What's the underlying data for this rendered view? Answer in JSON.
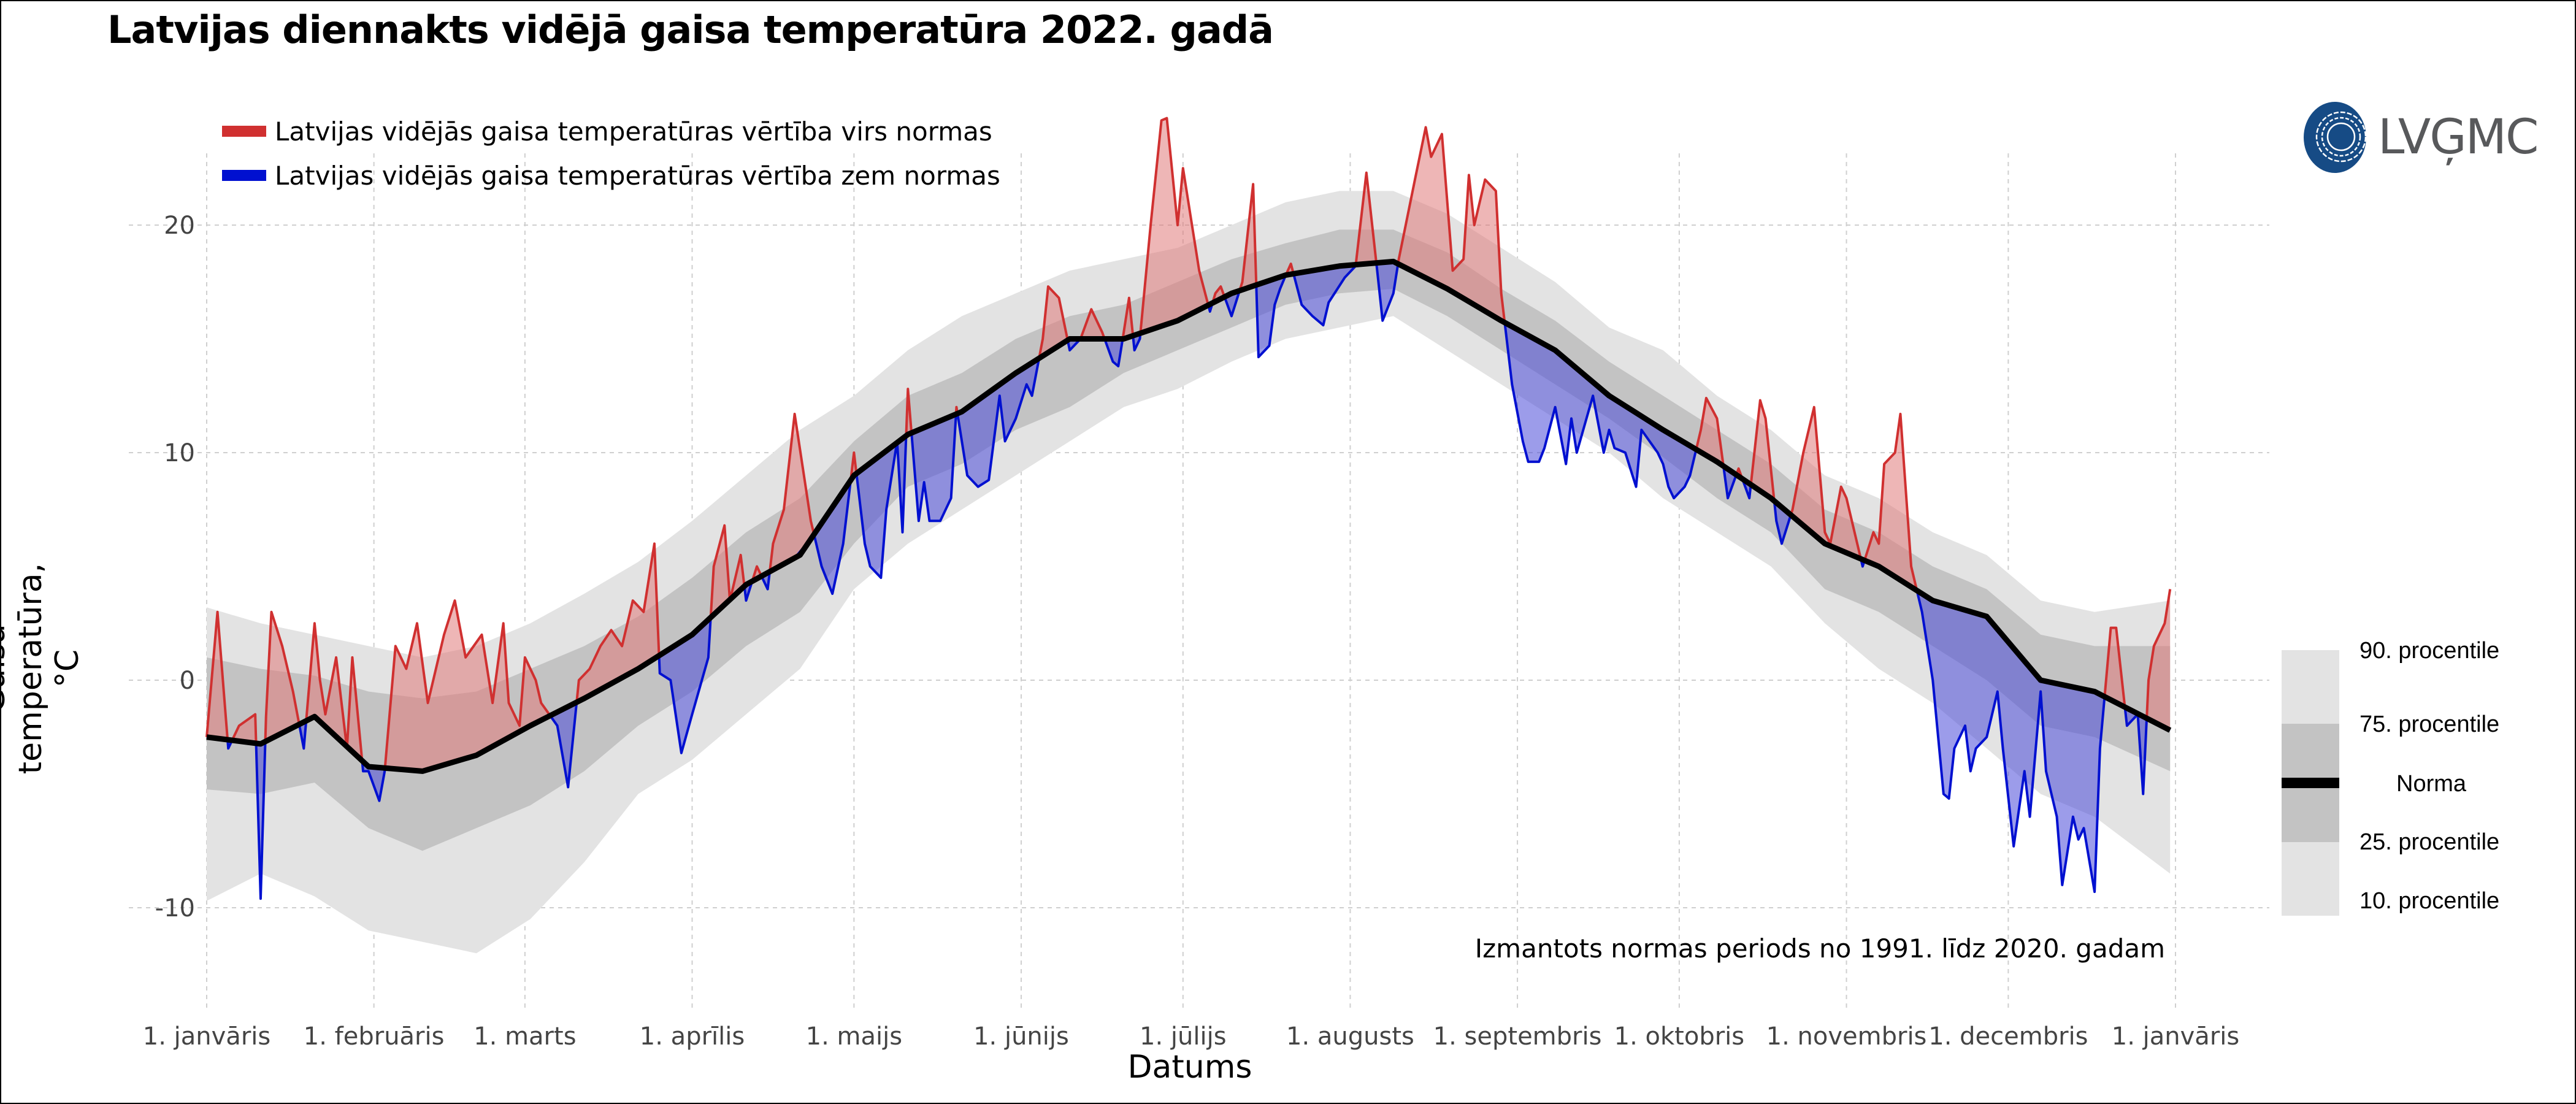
{
  "title": "Latvijas diennakts vidējā gaisa temperatūra 2022. gadā",
  "legend": {
    "above": {
      "label": "Latvijas vidējās gaisa temperatūras vērtība virs normas",
      "color": "#d03030"
    },
    "below": {
      "label": "Latvijas vidējās gaisa temperatūras vērtība zem normas",
      "color": "#0010d0"
    }
  },
  "logo": {
    "text": "LVĢMC",
    "color": "#164b85"
  },
  "percentile_legend": {
    "p90": "90. procentile",
    "p75": "75. procentile",
    "norma": "Norma",
    "p25": "25. procentile",
    "p10": "10. procentile"
  },
  "note": "Izmantots normas periods no 1991. līdz 2020. gadam",
  "chart_data": {
    "type": "area",
    "title": "Latvijas diennakts vidējā gaisa temperatūra 2022. gadā",
    "xlabel": "Datums",
    "ylabel": "Gaisa temperatūra, °C",
    "ylim": [
      -15,
      25
    ],
    "yticks": [
      -10,
      0,
      10,
      20
    ],
    "xticks": [
      {
        "day": 0,
        "label": "1. janvāris"
      },
      {
        "day": 31,
        "label": "1. februāris"
      },
      {
        "day": 59,
        "label": "1. marts"
      },
      {
        "day": 90,
        "label": "1. aprīlis"
      },
      {
        "day": 120,
        "label": "1. maijs"
      },
      {
        "day": 151,
        "label": "1. jūnijs"
      },
      {
        "day": 181,
        "label": "1. jūlijs"
      },
      {
        "day": 212,
        "label": "1. augusts"
      },
      {
        "day": 243,
        "label": "1. septembris"
      },
      {
        "day": 273,
        "label": "1. oktobris"
      },
      {
        "day": 304,
        "label": "1. novembris"
      },
      {
        "day": 334,
        "label": "1. decembris"
      },
      {
        "day": 365,
        "label": "1. janvāris"
      }
    ],
    "grid": true,
    "climate_days": [
      0,
      10,
      20,
      30,
      40,
      50,
      60,
      70,
      80,
      90,
      100,
      110,
      120,
      130,
      140,
      150,
      160,
      170,
      180,
      190,
      200,
      210,
      220,
      230,
      240,
      250,
      260,
      270,
      280,
      290,
      300,
      310,
      320,
      330,
      340,
      350,
      364
    ],
    "p10": [
      -9.7,
      -8.5,
      -9.5,
      -11.0,
      -11.5,
      -12.0,
      -10.5,
      -8.0,
      -5.0,
      -3.5,
      -1.5,
      0.5,
      4.0,
      6.0,
      7.5,
      9.0,
      10.5,
      12.0,
      12.8,
      14.0,
      15.0,
      15.5,
      16.0,
      14.5,
      13.0,
      11.5,
      10.0,
      8.0,
      6.5,
      5.0,
      2.5,
      0.5,
      -1.0,
      -3.0,
      -5.0,
      -6.0,
      -8.5
    ],
    "p25": [
      -4.8,
      -5.0,
      -4.5,
      -6.5,
      -7.5,
      -6.5,
      -5.5,
      -4.0,
      -2.0,
      -0.5,
      1.5,
      3.0,
      6.0,
      8.5,
      9.5,
      11.0,
      12.0,
      13.5,
      14.5,
      15.5,
      16.5,
      17.0,
      17.2,
      16.0,
      14.5,
      13.0,
      11.5,
      9.8,
      8.0,
      6.5,
      4.0,
      3.0,
      1.5,
      0.0,
      -2.0,
      -2.5,
      -4.0
    ],
    "norma": [
      -2.5,
      -2.8,
      -1.6,
      -3.8,
      -4.0,
      -3.3,
      -2.0,
      -0.8,
      0.5,
      2.0,
      4.2,
      5.5,
      9.0,
      10.8,
      11.8,
      13.5,
      15.0,
      15.0,
      15.8,
      17.0,
      17.8,
      18.2,
      18.4,
      17.2,
      15.8,
      14.5,
      12.5,
      11.0,
      9.6,
      8.0,
      6.0,
      5.0,
      3.5,
      2.8,
      0.0,
      -0.5,
      -2.2
    ],
    "p75": [
      1.0,
      0.5,
      0.2,
      -0.5,
      -0.8,
      -0.5,
      0.5,
      1.5,
      2.8,
      4.5,
      6.5,
      8.0,
      10.5,
      12.5,
      13.5,
      15.0,
      16.0,
      16.5,
      17.5,
      18.5,
      19.2,
      19.8,
      19.8,
      18.8,
      17.2,
      15.8,
      14.0,
      12.5,
      11.0,
      9.5,
      7.5,
      6.5,
      5.0,
      4.0,
      2.0,
      1.5,
      1.5
    ],
    "p90": [
      3.2,
      2.5,
      2.0,
      1.5,
      1.0,
      1.5,
      2.5,
      3.8,
      5.2,
      7.0,
      9.0,
      11.0,
      12.5,
      14.5,
      16.0,
      17.0,
      18.0,
      18.5,
      19.0,
      20.0,
      21.0,
      21.5,
      21.5,
      20.5,
      19.0,
      17.5,
      15.5,
      14.5,
      12.5,
      11.0,
      9.0,
      8.0,
      6.5,
      5.5,
      3.5,
      3.0,
      3.5
    ],
    "actual_2022": [
      [
        0,
        -2.5
      ],
      [
        2,
        3
      ],
      [
        4,
        -3
      ],
      [
        6,
        -2
      ],
      [
        9,
        -1.5
      ],
      [
        10,
        -9.6
      ],
      [
        11,
        -1.6
      ],
      [
        12,
        3
      ],
      [
        14,
        1.5
      ],
      [
        16,
        -0.5
      ],
      [
        18,
        -3
      ],
      [
        20,
        2.5
      ],
      [
        21,
        0
      ],
      [
        22,
        -1.5
      ],
      [
        24,
        1
      ],
      [
        26,
        -3
      ],
      [
        27,
        1
      ],
      [
        29,
        -4
      ],
      [
        30,
        -4
      ],
      [
        32,
        -5.3
      ],
      [
        33,
        -4
      ],
      [
        35,
        1.5
      ],
      [
        37,
        0.5
      ],
      [
        39,
        2.5
      ],
      [
        41,
        -1
      ],
      [
        44,
        2
      ],
      [
        46,
        3.5
      ],
      [
        48,
        1
      ],
      [
        51,
        2
      ],
      [
        53,
        -1
      ],
      [
        55,
        2.5
      ],
      [
        56,
        -1
      ],
      [
        58,
        -2
      ],
      [
        59,
        1
      ],
      [
        61,
        0
      ],
      [
        62,
        -1
      ],
      [
        65,
        -2
      ],
      [
        67,
        -4.7
      ],
      [
        69,
        0
      ],
      [
        71,
        0.5
      ],
      [
        73,
        1.5
      ],
      [
        75,
        2.2
      ],
      [
        77,
        1.5
      ],
      [
        79,
        3.5
      ],
      [
        81,
        3
      ],
      [
        83,
        6
      ],
      [
        84,
        0.3
      ],
      [
        86,
        0
      ],
      [
        88,
        -3.2
      ],
      [
        90,
        -1.5
      ],
      [
        93,
        1
      ],
      [
        94,
        5
      ],
      [
        96,
        6.8
      ],
      [
        97,
        3.5
      ],
      [
        98,
        4.5
      ],
      [
        99,
        5.5
      ],
      [
        100,
        3.5
      ],
      [
        102,
        5
      ],
      [
        104,
        4
      ],
      [
        105,
        6
      ],
      [
        107,
        7.5
      ],
      [
        109,
        11.7
      ],
      [
        112,
        7
      ],
      [
        114,
        5
      ],
      [
        116,
        3.8
      ],
      [
        118,
        6
      ],
      [
        120,
        10
      ],
      [
        122,
        6
      ],
      [
        123,
        5
      ],
      [
        125,
        4.5
      ],
      [
        126,
        7.5
      ],
      [
        128,
        10.5
      ],
      [
        129,
        6.5
      ],
      [
        130,
        12.8
      ],
      [
        132,
        7
      ],
      [
        133,
        8.7
      ],
      [
        134,
        7
      ],
      [
        136,
        7
      ],
      [
        138,
        8
      ],
      [
        139,
        12
      ],
      [
        141,
        9
      ],
      [
        143,
        8.5
      ],
      [
        145,
        8.8
      ],
      [
        147,
        12.5
      ],
      [
        148,
        10.5
      ],
      [
        150,
        11.5
      ],
      [
        152,
        13
      ],
      [
        153,
        12.5
      ],
      [
        155,
        15
      ],
      [
        156,
        17.3
      ],
      [
        158,
        16.8
      ],
      [
        160,
        14.5
      ],
      [
        162,
        15
      ],
      [
        164,
        16.3
      ],
      [
        166,
        15.3
      ],
      [
        168,
        14
      ],
      [
        169,
        13.8
      ],
      [
        171,
        16.8
      ],
      [
        172,
        14.5
      ],
      [
        173,
        15
      ],
      [
        175,
        20
      ],
      [
        177,
        24.6
      ],
      [
        178,
        24.7
      ],
      [
        180,
        20
      ],
      [
        181,
        22.5
      ],
      [
        184,
        18
      ],
      [
        186,
        16.2
      ],
      [
        187,
        17
      ],
      [
        188,
        17.3
      ],
      [
        190,
        16
      ],
      [
        192,
        17.5
      ],
      [
        194,
        21.8
      ],
      [
        195,
        14.2
      ],
      [
        197,
        14.7
      ],
      [
        198,
        16.5
      ],
      [
        199,
        17.2
      ],
      [
        201,
        18.3
      ],
      [
        203,
        16.5
      ],
      [
        205,
        16
      ],
      [
        207,
        15.6
      ],
      [
        208,
        16.6
      ],
      [
        211,
        17.7
      ],
      [
        213,
        18.2
      ],
      [
        215,
        22.3
      ],
      [
        217,
        18
      ],
      [
        218,
        15.8
      ],
      [
        220,
        17
      ],
      [
        221,
        18.5
      ],
      [
        224,
        22
      ],
      [
        226,
        24.3
      ],
      [
        227,
        23
      ],
      [
        229,
        24
      ],
      [
        231,
        18
      ],
      [
        233,
        18.5
      ],
      [
        234,
        22.2
      ],
      [
        235,
        20
      ],
      [
        237,
        22
      ],
      [
        239,
        21.5
      ],
      [
        240,
        17
      ],
      [
        242,
        13
      ],
      [
        244,
        10.5
      ],
      [
        245,
        9.6
      ],
      [
        247,
        9.6
      ],
      [
        248,
        10.2
      ],
      [
        250,
        12
      ],
      [
        252,
        9.5
      ],
      [
        253,
        11.5
      ],
      [
        254,
        10
      ],
      [
        257,
        12.5
      ],
      [
        259,
        10
      ],
      [
        260,
        11
      ],
      [
        261,
        10.2
      ],
      [
        263,
        10
      ],
      [
        265,
        8.5
      ],
      [
        266,
        11
      ],
      [
        269,
        10
      ],
      [
        270,
        9.5
      ],
      [
        271,
        8.5
      ],
      [
        272,
        8
      ],
      [
        274,
        8.5
      ],
      [
        275,
        9
      ],
      [
        277,
        11
      ],
      [
        278,
        12.4
      ],
      [
        280,
        11.5
      ],
      [
        282,
        8
      ],
      [
        284,
        9.3
      ],
      [
        286,
        8
      ],
      [
        288,
        12.3
      ],
      [
        289,
        11.5
      ],
      [
        291,
        7
      ],
      [
        292,
        6
      ],
      [
        294,
        7.5
      ],
      [
        296,
        10
      ],
      [
        298,
        12
      ],
      [
        300,
        6.5
      ],
      [
        301,
        6
      ],
      [
        303,
        8.5
      ],
      [
        304,
        8
      ],
      [
        306,
        6
      ],
      [
        307,
        5
      ],
      [
        309,
        6.5
      ],
      [
        310,
        6
      ],
      [
        311,
        9.5
      ],
      [
        313,
        10
      ],
      [
        314,
        11.7
      ],
      [
        316,
        5
      ],
      [
        318,
        3
      ],
      [
        320,
        0
      ],
      [
        322,
        -5
      ],
      [
        323,
        -5.2
      ],
      [
        324,
        -3
      ],
      [
        326,
        -2
      ],
      [
        327,
        -4
      ],
      [
        328,
        -3
      ],
      [
        330,
        -2.5
      ],
      [
        332,
        -0.5
      ],
      [
        333,
        -3
      ],
      [
        335,
        -7.3
      ],
      [
        337,
        -4
      ],
      [
        338,
        -6
      ],
      [
        340,
        -0.5
      ],
      [
        341,
        -4
      ],
      [
        343,
        -6
      ],
      [
        344,
        -9
      ],
      [
        346,
        -6
      ],
      [
        347,
        -7
      ],
      [
        348,
        -6.5
      ],
      [
        350,
        -9.3
      ],
      [
        351,
        -3
      ],
      [
        353,
        2.3
      ],
      [
        354,
        2.3
      ],
      [
        356,
        -2
      ],
      [
        358,
        -1.5
      ],
      [
        359,
        -5
      ],
      [
        360,
        0
      ],
      [
        361,
        1.5
      ],
      [
        363,
        2.5
      ],
      [
        364,
        4
      ]
    ],
    "colors": {
      "p10_p90": "#e3e3e3",
      "p25_p75": "#c3c3c3",
      "norma": "#000000",
      "above_fill": "#e07a7a",
      "below_fill": "#4a4ad8"
    }
  }
}
